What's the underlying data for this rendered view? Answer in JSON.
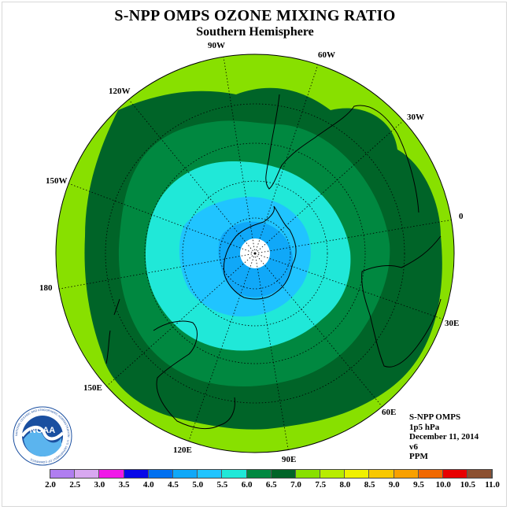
{
  "title": "S-NPP OMPS OZONE MIXING RATIO",
  "subtitle": "Southern Hemisphere",
  "longitude_labels": {
    "w90": "90W",
    "w60": "60W",
    "w120": "120W",
    "w30": "30W",
    "w150": "150W",
    "zero": "0",
    "lon180": "180",
    "e30": "30E",
    "e150": "150E",
    "e60": "60E",
    "e120": "120E",
    "e90": "90E"
  },
  "info": {
    "instrument": "S-NPP OMPS",
    "level": "1p5 hPa",
    "date": "December 11, 2014",
    "version": "v6",
    "units": "PPM"
  },
  "logo": {
    "text": "NOAA",
    "icon": "noaa-logo-icon",
    "ring_text": "NATIONAL OCEANIC AND ATMOSPHERIC ADMINISTRATION · U.S. DEPARTMENT OF COMMERCE"
  },
  "colorbar": {
    "ticks": [
      "2.0",
      "2.5",
      "3.0",
      "3.5",
      "4.0",
      "4.5",
      "5.0",
      "5.5",
      "6.0",
      "6.5",
      "7.0",
      "7.5",
      "8.0",
      "8.5",
      "9.0",
      "9.5",
      "10.0",
      "10.5",
      "11.0"
    ],
    "colors": [
      "#b07ef0",
      "#d8a8f0",
      "#f018e8",
      "#0808e8",
      "#0070f0",
      "#10a8f8",
      "#20c4ff",
      "#20e8d8",
      "#008840",
      "#006428",
      "#88e000",
      "#b8ec00",
      "#f0f000",
      "#f8c800",
      "#f8a000",
      "#f06800",
      "#e80000",
      "#8c5030"
    ]
  },
  "map_colors": {
    "land_outline": "#000000",
    "contour_65_70": "#006428",
    "contour_60_65": "#008840",
    "contour_55_60": "#20e8d8",
    "contour_50_55": "#20c4ff",
    "contour_45_50": "#10a8f8",
    "contour_75_80": "#88e000"
  }
}
